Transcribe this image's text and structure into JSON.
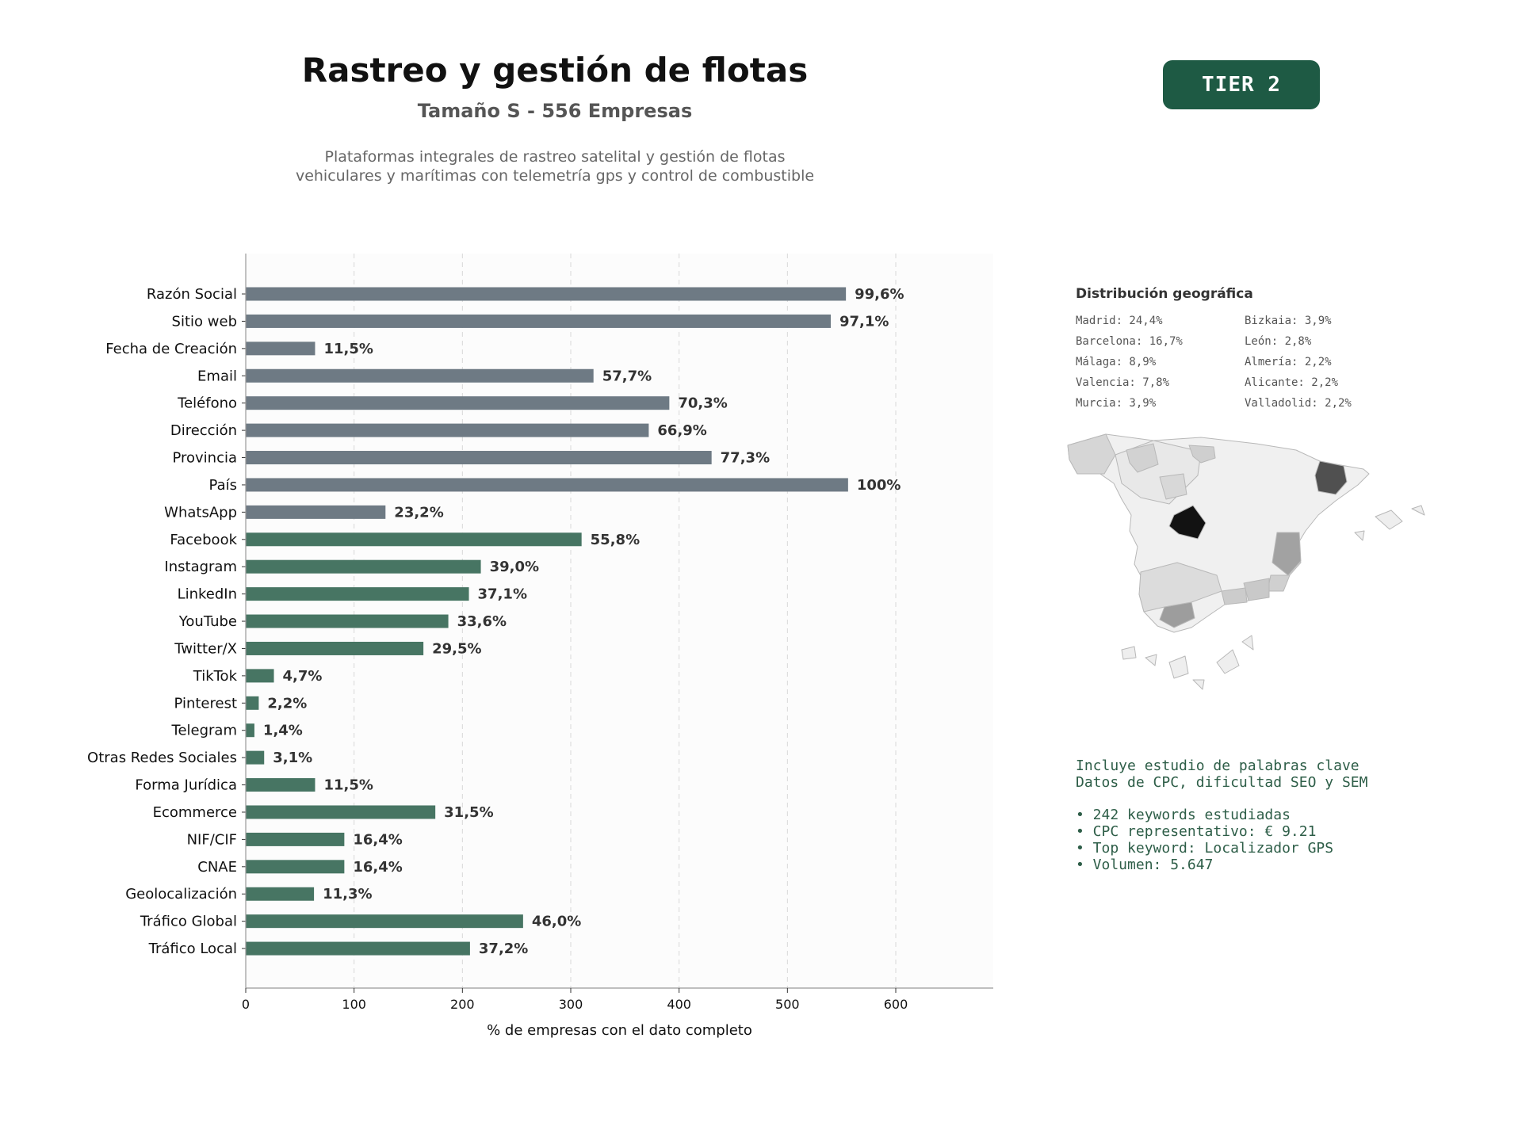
{
  "header": {
    "title": "Rastreo y gestión de flotas",
    "subtitle": "Tamaño S - 556 Empresas",
    "description_lines": [
      "Plataformas integrales de rastreo satelital y gestión de flotas",
      "vehiculares y marítimas con telemetría gps y control de combustible"
    ],
    "tier_label": "TIER 2"
  },
  "colors": {
    "tier_badge": "#1e5a44",
    "bar_contact": "#6e7a84",
    "bar_digital": "#477563",
    "keyword_text": "#2e5e48",
    "plot_background": "#fcfcfc"
  },
  "chart_data": {
    "type": "bar",
    "orientation": "horizontal",
    "xlabel": "% de empresas con el dato completo",
    "xlim": [
      0,
      690
    ],
    "xticks": [
      0,
      100,
      200,
      300,
      400,
      500,
      600
    ],
    "grid": true,
    "categories": [
      "Razón Social",
      "Sitio web",
      "Fecha de Creación",
      "Email",
      "Teléfono",
      "Dirección",
      "Provincia",
      "País",
      "WhatsApp",
      "Facebook",
      "Instagram",
      "LinkedIn",
      "YouTube",
      "Twitter/X",
      "TikTok",
      "Pinterest",
      "Telegram",
      "Otras Redes Sociales",
      "Forma Jurídica",
      "Ecommerce",
      "NIF/CIF",
      "CNAE",
      "Geolocalización",
      "Tráfico Global",
      "Tráfico Local"
    ],
    "values": [
      554,
      540,
      64,
      321,
      391,
      372,
      430,
      556,
      129,
      310,
      217,
      206,
      187,
      164,
      26,
      12,
      8,
      17,
      64,
      175,
      91,
      91,
      63,
      256,
      207
    ],
    "labels": [
      "99,6%",
      "97,1%",
      "11,5%",
      "57,7%",
      "70,3%",
      "66,9%",
      "77,3%",
      "100%",
      "23,2%",
      "55,8%",
      "39,0%",
      "37,1%",
      "33,6%",
      "29,5%",
      "4,7%",
      "2,2%",
      "1,4%",
      "3,1%",
      "11,5%",
      "31,5%",
      "16,4%",
      "16,4%",
      "11,3%",
      "46,0%",
      "37,2%"
    ],
    "groups": [
      "contact",
      "contact",
      "contact",
      "contact",
      "contact",
      "contact",
      "contact",
      "contact",
      "contact",
      "digital",
      "digital",
      "digital",
      "digital",
      "digital",
      "digital",
      "digital",
      "digital",
      "digital",
      "digital",
      "digital",
      "digital",
      "digital",
      "digital",
      "digital",
      "digital"
    ]
  },
  "geo": {
    "title": "Distribución geográfica",
    "items": [
      "Madrid: 24,4%",
      "Bizkaia: 3,9%",
      "Barcelona: 16,7%",
      "León: 2,8%",
      "Málaga: 8,9%",
      "Almería: 2,2%",
      "Valencia: 7,8%",
      "Alicante: 2,2%",
      "Murcia: 3,9%",
      "Valladolid: 2,2%"
    ]
  },
  "keywords": {
    "intro_lines": [
      "Incluye estudio de palabras clave",
      "Datos de CPC, dificultad SEO y SEM"
    ],
    "bullets": [
      "• 242 keywords estudiadas",
      "• CPC representativo: € 9.21",
      "• Top keyword: Localizador GPS",
      "• Volumen: 5.647"
    ]
  }
}
